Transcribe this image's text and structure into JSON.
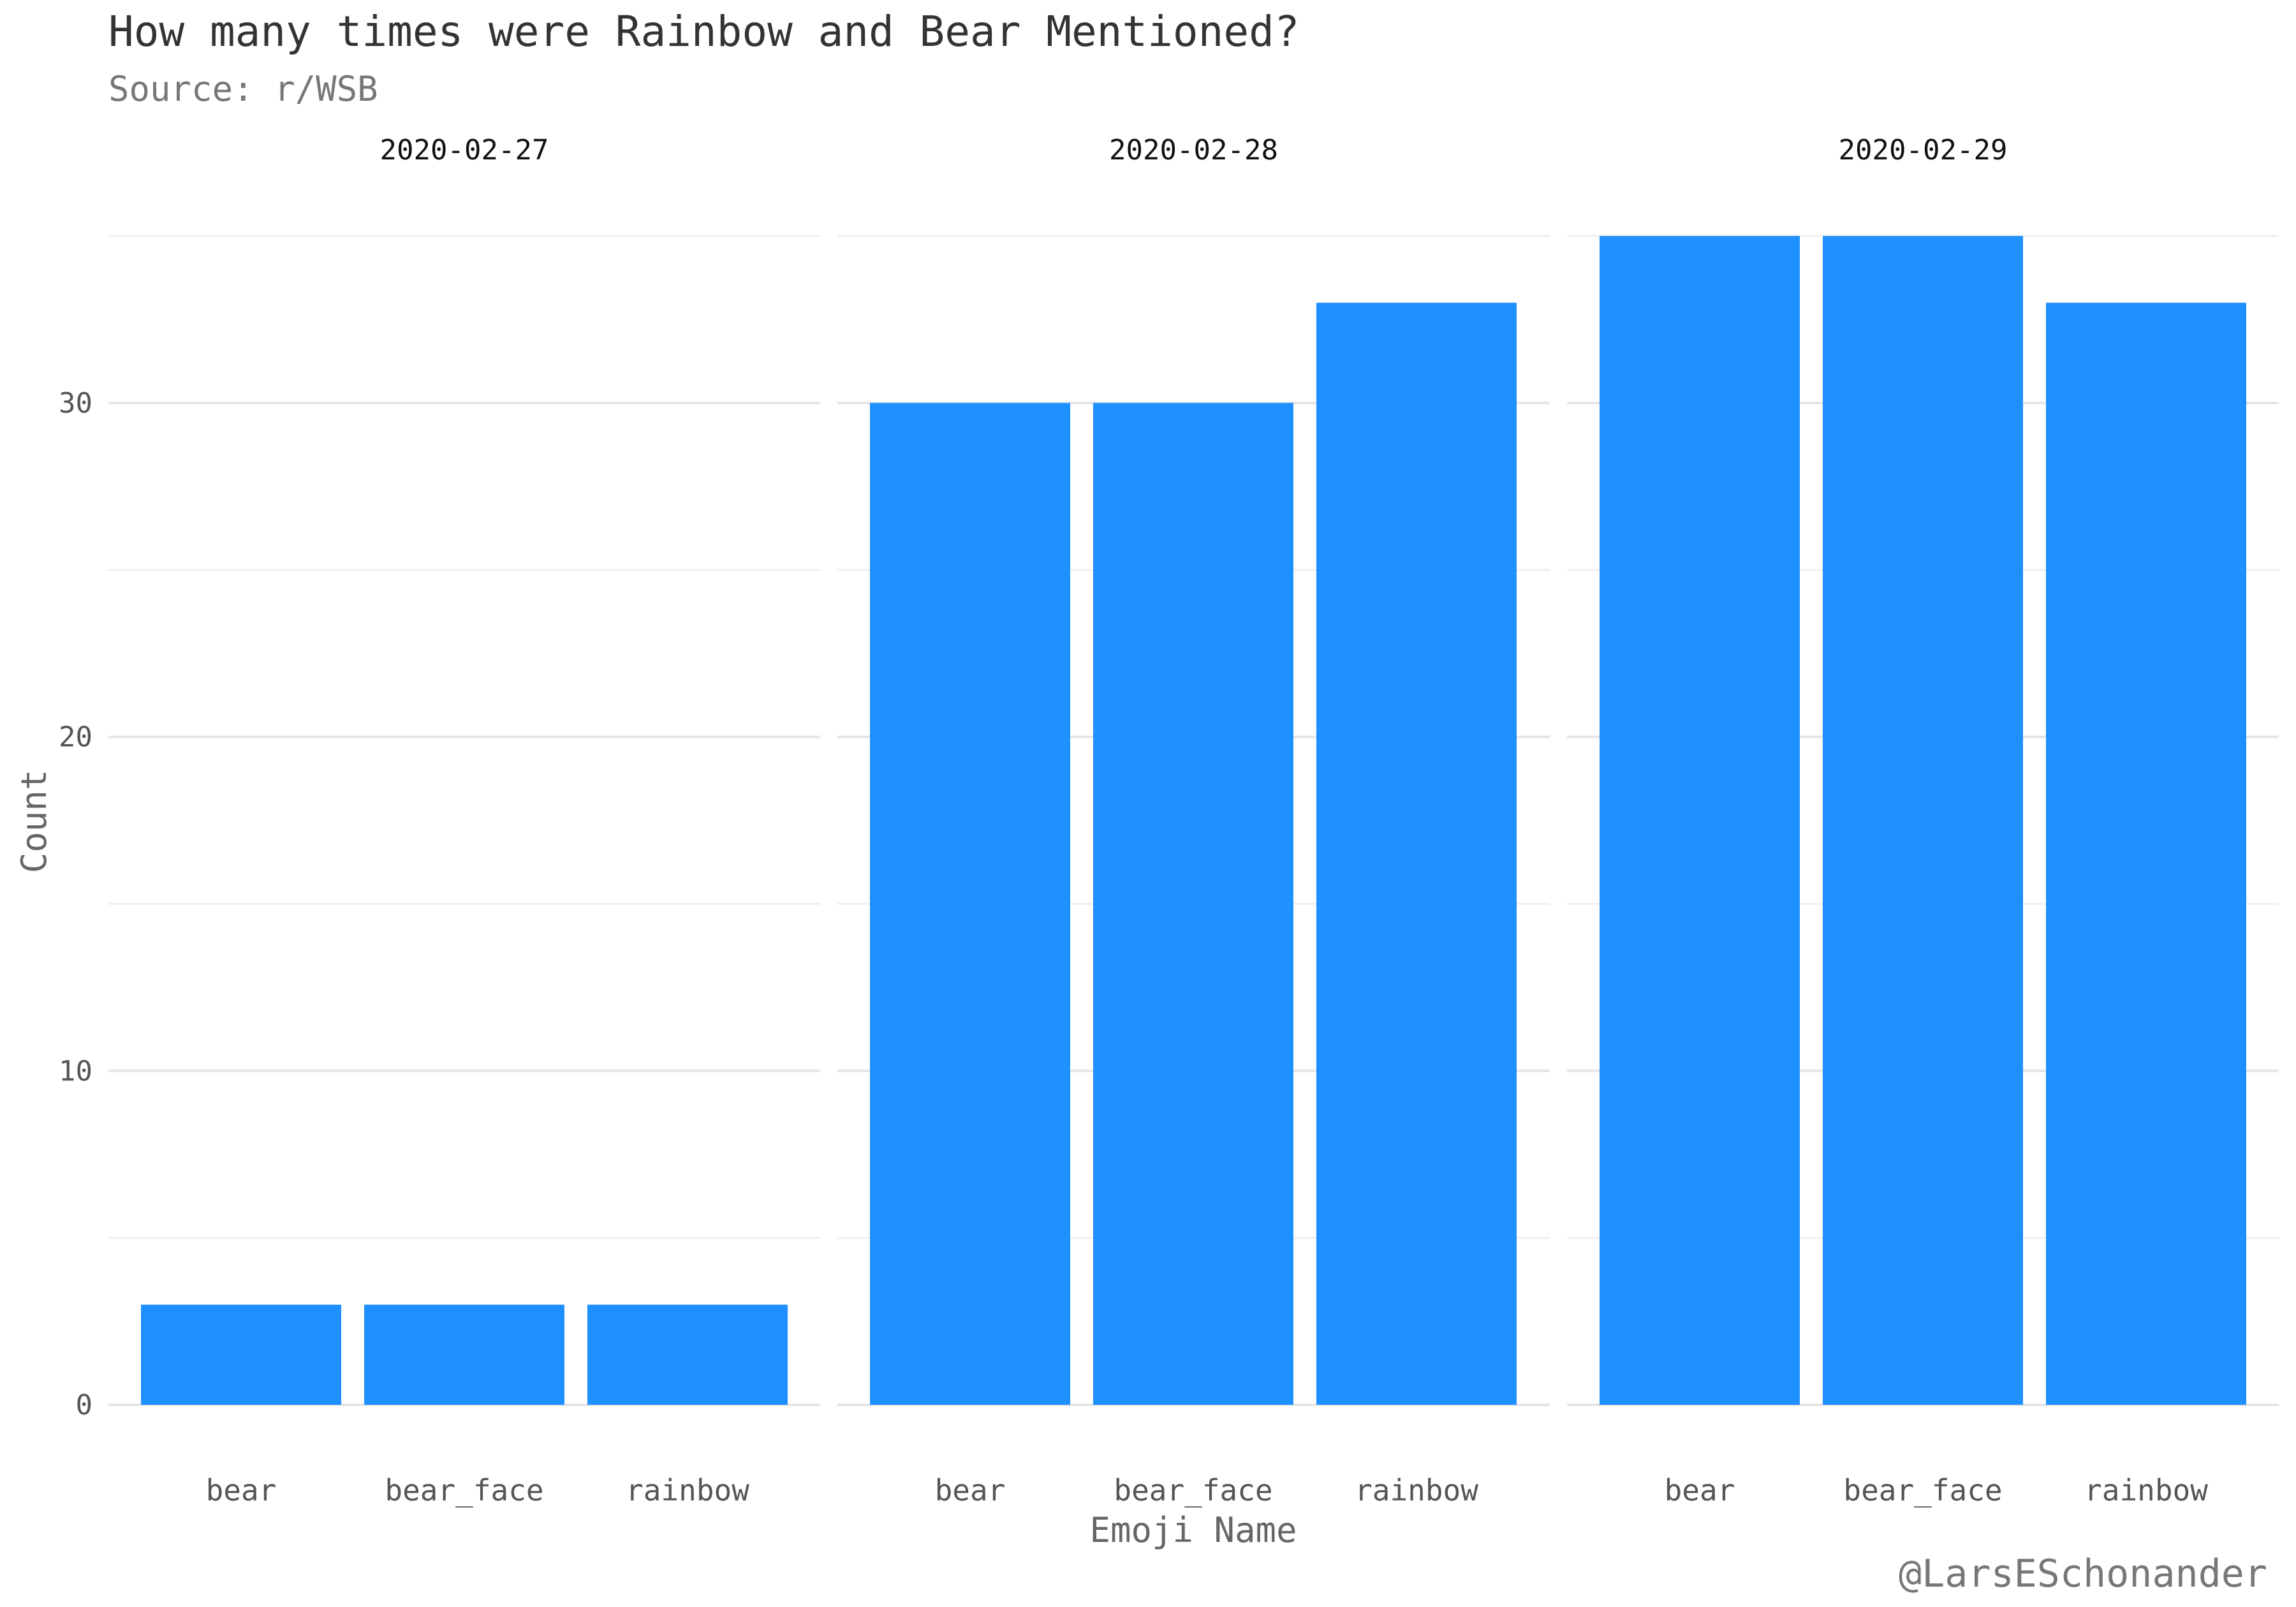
{
  "chart_data": {
    "type": "bar",
    "title": "How many times were Rainbow and Bear Mentioned?",
    "subtitle": "Source: r/WSB",
    "xlabel": "Emoji Name",
    "ylabel": "Count",
    "caption": "@LarsESchonander",
    "ylim": [
      0,
      35
    ],
    "y_ticks": [
      0,
      10,
      20,
      30
    ],
    "grid": true,
    "bar_color": "#1e90ff",
    "categories": [
      "bear",
      "bear_face",
      "rainbow"
    ],
    "facets": [
      {
        "label": "2020-02-27",
        "values": [
          3,
          3,
          3
        ]
      },
      {
        "label": "2020-02-28",
        "values": [
          30,
          30,
          33
        ]
      },
      {
        "label": "2020-02-29",
        "values": [
          35,
          35,
          33
        ]
      }
    ]
  }
}
